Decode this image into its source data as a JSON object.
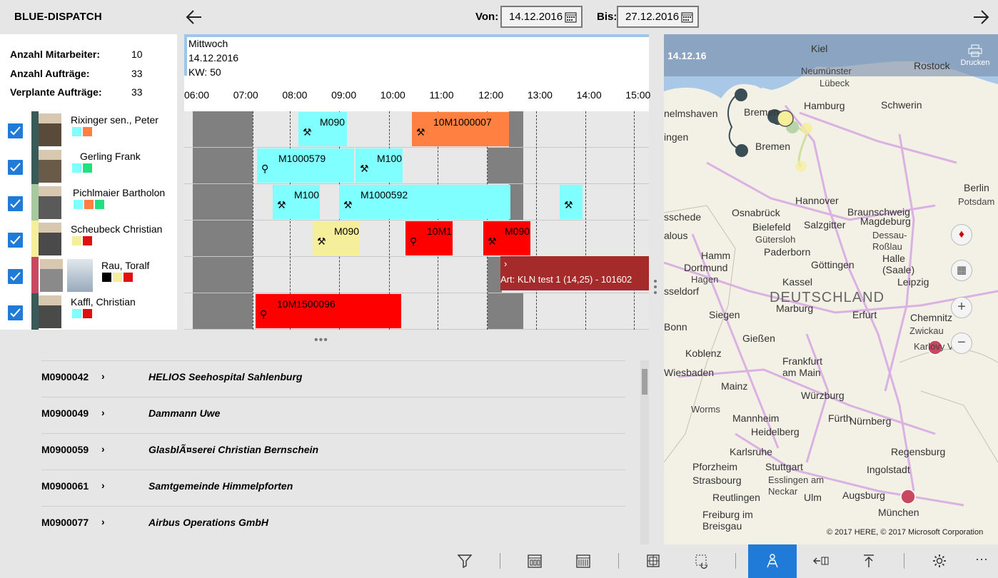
{
  "app": {
    "title": "BLUE-DISPATCH"
  },
  "nav": {
    "von_label": "Von:",
    "von_value": "14.12.2016",
    "bis_label": "Bis:",
    "bis_value": "27.12.2016"
  },
  "stats": [
    {
      "label": "Anzahl Mitarbeiter:",
      "value": "10"
    },
    {
      "label": "Anzahl Aufträge:",
      "value": "33"
    },
    {
      "label": "Verplante Aufträge:",
      "value": "33"
    }
  ],
  "day": {
    "weekday": "Mittwoch",
    "date": "14.12.2016",
    "week": "KW: 50"
  },
  "hours": [
    "06:00",
    "07:00",
    "08:00",
    "09:00",
    "10:00",
    "11:00",
    "12:00",
    "13:00",
    "14:00",
    "15:00"
  ],
  "employees": [
    {
      "name": "Rixinger sen., Peter",
      "color": "#3a5a5a",
      "swatches": [
        "#7fffff",
        "#ff8040"
      ]
    },
    {
      "name": "Gerling Frank",
      "color": "#3a5a5a",
      "swatches": [
        "#7fffff",
        "#20e080"
      ]
    },
    {
      "name": "Pichlmaier Bartholon",
      "color": "#a8c8a0",
      "swatches": [
        "#7fffff",
        "#ff8040",
        "#20e080"
      ]
    },
    {
      "name": "Scheubeck Christian",
      "color": "#f5ee9a",
      "swatches": [
        "#f5ee9a",
        "#e01010"
      ]
    },
    {
      "name": "Rau, Toralf",
      "color": "#c84860",
      "swatches": [
        "#000000",
        "#f5ee9a",
        "#e01010"
      ]
    },
    {
      "name": "Kaffl, Christian",
      "color": "#3a5a5a",
      "swatches": [
        "#7fffff",
        "#e01010"
      ]
    }
  ],
  "jobs": [
    {
      "row": 0,
      "label": "M090",
      "icon": "⚒",
      "color": "#7fffff"
    },
    {
      "row": 0,
      "label": "10M1000007",
      "icon": "⚒",
      "color": "#ff8040"
    },
    {
      "row": 1,
      "label": "M1000579",
      "icon": "⚲",
      "color": "#7fffff"
    },
    {
      "row": 1,
      "label": "M100",
      "icon": "⚒",
      "color": "#7fffff"
    },
    {
      "row": 2,
      "label": "M100",
      "icon": "⚒",
      "color": "#7fffff"
    },
    {
      "row": 2,
      "label": "M1000592",
      "icon": "⚒",
      "color": "#7fffff"
    },
    {
      "row": 2,
      "label": "",
      "icon": "⚒",
      "color": "#7fffff"
    },
    {
      "row": 3,
      "label": "M090",
      "icon": "⚒",
      "color": "#f5ee9a"
    },
    {
      "row": 3,
      "label": "10M1",
      "icon": "⚲",
      "color": "#ff0000"
    },
    {
      "row": 3,
      "label": "M090",
      "icon": "⚒",
      "color": "#ff0000"
    },
    {
      "row": 5,
      "label": "10M1500096",
      "icon": "⚲",
      "color": "#ff0000"
    }
  ],
  "tooltip": {
    "chevron": "›",
    "text": "Art: KLN test 1 (14,25) - 101602"
  },
  "orders": [
    {
      "id": "M0900042",
      "name": "HELIOS Seehospital Sahlenburg"
    },
    {
      "id": "M0900049",
      "name": "Dammann Uwe"
    },
    {
      "id": "M0900059",
      "name": "GlasblÃ¤serei Christian Bernschein"
    },
    {
      "id": "M0900061",
      "name": "Samtgemeinde Himmelpforten"
    },
    {
      "id": "M0900077",
      "name": "Airbus Operations GmbH"
    }
  ],
  "order_chevron": "›",
  "map": {
    "date": "14.12.16",
    "print_label": "Drucken",
    "country": "DEUTSCHLAND",
    "copyright": "© 2017 HERE, © 2017 Microsoft Corporation",
    "cities": [
      "Kiel",
      "Rostock",
      "Neumünster",
      "Lübeck",
      "Schwerin",
      "Hamburg",
      "Bremen",
      "Bremen",
      "nelmshaven",
      "ingen",
      "Hannover",
      "Braunschweig",
      "Berlin",
      "Potsdam",
      "Osnabrück",
      "Bielefeld",
      "Gütersloh",
      "Paderborn",
      "Salzgitter",
      "Magdeburg",
      "Dessau-Roßlau",
      "Halle (Saale)",
      "Leipzig",
      "Hamm",
      "Dortmund",
      "Hagen",
      "sseldorf",
      "Kassel",
      "Göttingen",
      "Siegen",
      "Marburg",
      "Gießen",
      "Erfurt",
      "Chemnitz",
      "Zwickau",
      "Bonn",
      "Koblenz",
      "Frankfurt am Main",
      "Wiesbaden",
      "Mainz",
      "Würzburg",
      "Karlovy Vary",
      "Worms",
      "Mannheim",
      "Heidelberg",
      "Fürth",
      "Nürnberg",
      "Karlsruhe",
      "Regensburg",
      "Pforzheim",
      "Stuttgart",
      "Esslingen am Neckar",
      "Strasbourg",
      "Reutlingen",
      "Ulm",
      "Ingolstadt",
      "Augsburg",
      "München",
      "Freiburg im Breisgau",
      "sschede",
      "alous"
    ]
  },
  "toolbar": {
    "more": "···"
  }
}
